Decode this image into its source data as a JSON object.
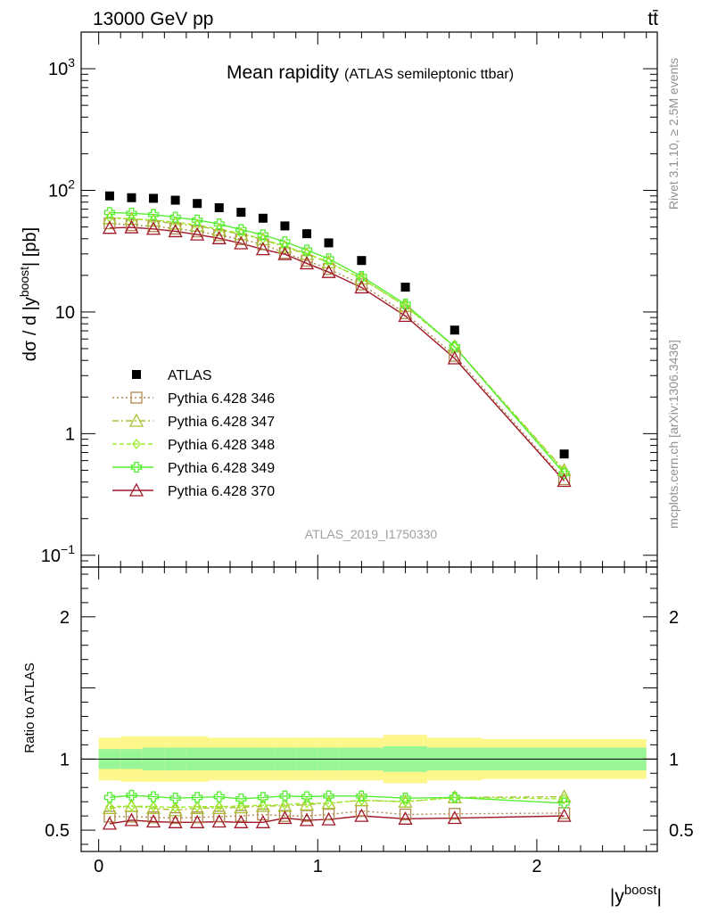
{
  "header": {
    "left": "13000 GeV pp",
    "right": "tt̄"
  },
  "side_labels": {
    "top": "Rivet 3.1.10, ≥ 2.5M events",
    "bottom": "mcplots.cern.ch [arXiv:1306.3436]"
  },
  "chart_data": {
    "type": "scatter",
    "title": "Mean rapidity",
    "subtitle": "(ATLAS semileptonic ttbar)",
    "analysis_label": "ATLAS_2019_I1750330",
    "xlabel_base": "|y",
    "xlabel_sup": "boost",
    "xlabel_close": "|",
    "ylabel_main": "dσ / d |y",
    "ylabel_sup": "boost",
    "ylabel_tail": "| [pb]",
    "ratio_ylabel": "Ratio to ATLAS",
    "xlim": [
      -0.08,
      2.55
    ],
    "ylim_main": [
      0.08,
      2000
    ],
    "yscale_main": "log",
    "ylim_ratio": [
      0.35,
      2.35
    ],
    "x_ticks": [
      {
        "v": 0,
        "label": "0"
      },
      {
        "v": 1,
        "label": "1"
      },
      {
        "v": 2,
        "label": "2"
      }
    ],
    "y_ticks_main": [
      {
        "v": 0.1,
        "label": "10",
        "sup": "−1"
      },
      {
        "v": 1,
        "label": "1",
        "sup": ""
      },
      {
        "v": 10,
        "label": "10",
        "sup": ""
      },
      {
        "v": 100,
        "label": "10",
        "sup": "2"
      },
      {
        "v": 1000,
        "label": "10",
        "sup": "3"
      }
    ],
    "y_ticks_ratio": [
      {
        "v": 0.5,
        "label": "0.5"
      },
      {
        "v": 1,
        "label": "1"
      },
      {
        "v": 2,
        "label": "2"
      }
    ],
    "bin_edges": [
      0,
      0.1,
      0.2,
      0.3,
      0.4,
      0.5,
      0.6,
      0.7,
      0.8,
      0.9,
      1.0,
      1.1,
      1.3,
      1.5,
      1.75,
      2.5
    ],
    "x": [
      0.05,
      0.15,
      0.25,
      0.35,
      0.45,
      0.55,
      0.65,
      0.75,
      0.85,
      0.95,
      1.05,
      1.2,
      1.4,
      1.625,
      2.125
    ],
    "data": {
      "name": "ATLAS",
      "values": [
        90,
        87,
        86,
        83,
        78,
        72,
        66,
        59,
        51,
        44,
        37,
        26.5,
        16,
        7.1,
        0.68
      ]
    },
    "band_inner": [
      0.07,
      0.07,
      0.08,
      0.08,
      0.08,
      0.08,
      0.08,
      0.08,
      0.08,
      0.08,
      0.08,
      0.08,
      0.09,
      0.08,
      0.08
    ],
    "band_outer": [
      0.15,
      0.16,
      0.16,
      0.16,
      0.16,
      0.15,
      0.15,
      0.15,
      0.15,
      0.15,
      0.15,
      0.15,
      0.17,
      0.15,
      0.14
    ],
    "series": [
      {
        "name": "Pythia 6.428 346",
        "color": "#b08850",
        "dash": "2,3",
        "marker": "square",
        "ratio": [
          0.595,
          0.595,
          0.59,
          0.585,
          0.59,
          0.595,
          0.6,
          0.61,
          0.6,
          0.6,
          0.61,
          0.635,
          0.61,
          0.615,
          0.62
        ]
      },
      {
        "name": "Pythia 6.428 347",
        "color": "#a8c030",
        "dash": "7,3,2,3",
        "marker": "triangle",
        "ratio": [
          0.655,
          0.67,
          0.655,
          0.64,
          0.655,
          0.655,
          0.66,
          0.67,
          0.67,
          0.68,
          0.69,
          0.71,
          0.7,
          0.73,
          0.735
        ]
      },
      {
        "name": "Pythia 6.428 348",
        "color": "#9cee2c",
        "dash": "5,3",
        "marker": "diamond",
        "ratio": [
          0.665,
          0.67,
          0.665,
          0.66,
          0.665,
          0.665,
          0.67,
          0.675,
          0.68,
          0.69,
          0.69,
          0.71,
          0.7,
          0.73,
          0.72
        ]
      },
      {
        "name": "Pythia 6.428 349",
        "color": "#55ee33",
        "dash": "",
        "marker": "cross",
        "ratio": [
          0.73,
          0.745,
          0.735,
          0.725,
          0.73,
          0.735,
          0.72,
          0.73,
          0.74,
          0.735,
          0.74,
          0.74,
          0.725,
          0.73,
          0.69
        ]
      },
      {
        "name": "Pythia 6.428 370",
        "color": "#a01828",
        "dash": "",
        "marker": "triangle",
        "ratio": [
          0.545,
          0.57,
          0.56,
          0.555,
          0.555,
          0.56,
          0.555,
          0.555,
          0.585,
          0.57,
          0.575,
          0.6,
          0.58,
          0.585,
          0.6
        ]
      }
    ],
    "legend_placement": "lower-left"
  }
}
